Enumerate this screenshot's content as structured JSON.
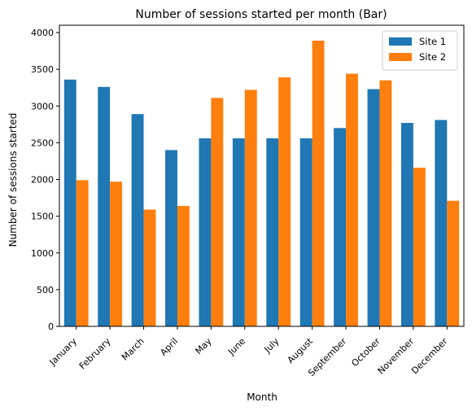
{
  "chart_data": {
    "type": "bar",
    "title": "Number of sessions started per month (Bar)",
    "xlabel": "Month",
    "ylabel": "Number of sessions started",
    "categories": [
      "January",
      "February",
      "March",
      "April",
      "May",
      "June",
      "July",
      "August",
      "September",
      "October",
      "November",
      "December"
    ],
    "series": [
      {
        "name": "Site 1",
        "color": "#1f77b4",
        "values": [
          3360,
          3260,
          2890,
          2400,
          2560,
          2560,
          2560,
          2560,
          2700,
          3230,
          2770,
          2810
        ]
      },
      {
        "name": "Site 2",
        "color": "#ff7f0e",
        "values": [
          1990,
          1970,
          1590,
          1640,
          3110,
          3220,
          3390,
          3890,
          3440,
          3350,
          2160,
          1710
        ]
      }
    ],
    "ylim": [
      0,
      4100
    ],
    "yticks": [
      0,
      500,
      1000,
      1500,
      2000,
      2500,
      3000,
      3500,
      4000
    ],
    "grid": false,
    "legend_position": "top-right"
  }
}
